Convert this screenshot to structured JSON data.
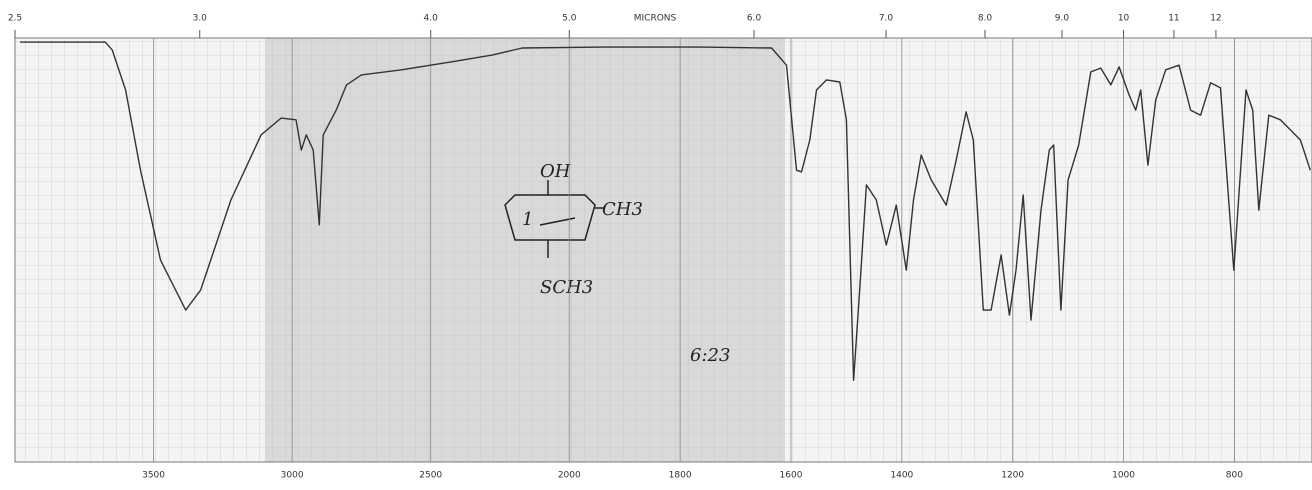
{
  "chart_data": {
    "type": "line",
    "x2label": "MICRONS",
    "x": [
      3982,
      3674,
      3649,
      3601,
      3547,
      3475,
      3384,
      3330,
      3221,
      3112,
      3040,
      2986,
      2967,
      2949,
      2924,
      2902,
      2888,
      2841,
      2804,
      2750,
      2605,
      2424,
      2279,
      2170,
      1941,
      1761,
      1635,
      1608,
      1590,
      1581,
      1566,
      1554,
      1536,
      1512,
      1500,
      1487,
      1476,
      1464,
      1446,
      1428,
      1410,
      1392,
      1379,
      1365,
      1347,
      1320,
      1302,
      1284,
      1271,
      1253,
      1239,
      1221,
      1206,
      1194,
      1181,
      1167,
      1149,
      1134,
      1126,
      1113,
      1100,
      1081,
      1059,
      1041,
      1023,
      1008,
      990,
      978,
      969,
      956,
      942,
      924,
      900,
      879,
      861,
      843,
      825,
      801,
      779,
      767,
      756,
      738,
      717,
      681,
      663
    ],
    "values": [
      99.5,
      99.5,
      97.6,
      88.1,
      69.0,
      47.6,
      35.7,
      40.5,
      61.9,
      77.4,
      81.4,
      81.0,
      73.8,
      77.4,
      73.8,
      56.0,
      77.4,
      83.3,
      89.3,
      91.7,
      92.9,
      94.8,
      96.4,
      98.1,
      98.3,
      98.3,
      98.1,
      94.0,
      69.0,
      68.6,
      76.2,
      88.1,
      90.5,
      90.0,
      81.0,
      19.0,
      40.5,
      65.5,
      61.9,
      51.2,
      60.7,
      45.2,
      61.9,
      72.6,
      66.7,
      60.7,
      71.4,
      82.9,
      76.2,
      35.7,
      35.7,
      48.8,
      34.5,
      45.2,
      63.1,
      33.3,
      59.5,
      73.8,
      75.0,
      35.7,
      66.7,
      75.0,
      92.4,
      93.3,
      89.3,
      93.6,
      86.9,
      83.3,
      88.1,
      70.2,
      85.7,
      92.9,
      94.0,
      83.3,
      82.1,
      89.8,
      88.6,
      45.2,
      88.1,
      83.3,
      59.5,
      82.1,
      81.0,
      76.2,
      69.0
    ],
    "color": "#333333",
    "xlim": [
      4000,
      660
    ],
    "ylim": [
      0,
      100
    ],
    "xticks": [
      3500,
      3000,
      2500,
      2000,
      1800,
      1600,
      1400,
      1200,
      1000,
      800
    ],
    "x2ticks": [
      2.5,
      {
        "value": 3,
        "label": "3.0"
      },
      {
        "value": 4,
        "label": "4.0"
      },
      {
        "value": 5,
        "label": "5.0"
      },
      {
        "value": 6,
        "label": "6.0"
      },
      {
        "value": 7,
        "label": "7.0"
      },
      {
        "value": 8,
        "label": "8.0"
      },
      {
        "value": 9,
        "label": "9.0"
      },
      10,
      11,
      12
    ],
    "grid": true,
    "annotations": {
      "oh": "OH",
      "ch3": "CH3",
      "sch3": "SCH3",
      "ring": "1",
      "time": "6:23"
    }
  }
}
